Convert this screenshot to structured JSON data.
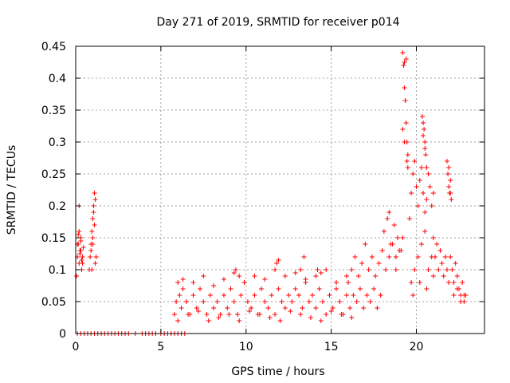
{
  "chart_data": {
    "type": "scatter",
    "title": "Day 271 of 2019, SRMTID for receiver p014",
    "xlabel": "GPS time / hours",
    "ylabel": "SRMTID / TECUs",
    "xlim": [
      0,
      24
    ],
    "ylim": [
      0,
      0.45
    ],
    "x_ticks": [
      0,
      5,
      10,
      15,
      20
    ],
    "x_tick_labels": [
      "0",
      "5",
      "10",
      "15",
      "20"
    ],
    "y_ticks": [
      0,
      0.05,
      0.1,
      0.15,
      0.2,
      0.25,
      0.3,
      0.35,
      0.4,
      0.45
    ],
    "y_tick_labels": [
      "0",
      "0.05",
      "0.1",
      "0.15",
      "0.2",
      "0.25",
      "0.3",
      "0.35",
      "0.4",
      "0.45"
    ],
    "grid": true,
    "marker": "+",
    "color": "#ff0000",
    "series": [
      {
        "name": "SRMTID",
        "x": [
          0.05,
          0.1,
          0.15,
          0.2,
          0.25,
          0.3,
          0.35,
          0.4,
          0.1,
          0.2,
          0.3,
          0.4,
          0.15,
          0.25,
          0.35,
          0.45,
          0.2,
          0.3,
          0.8,
          0.85,
          0.9,
          0.95,
          1.0,
          1.05,
          1.1,
          1.15,
          0.9,
          1.0,
          1.1,
          1.05,
          1.15,
          0.95,
          1.2,
          1.0,
          0.1,
          0.3,
          0.5,
          0.7,
          0.9,
          1.1,
          1.3,
          1.5,
          1.7,
          1.9,
          2.1,
          2.3,
          2.5,
          2.7,
          2.9,
          3.1,
          3.5,
          3.9,
          4.1,
          4.3,
          4.5,
          4.7,
          5.0,
          5.2,
          5.4,
          5.6,
          5.8,
          6.0,
          6.2,
          6.4,
          5.8,
          5.9,
          6.0,
          6.1,
          6.2,
          6.3,
          6.5,
          6.7,
          6.9,
          7.1,
          7.3,
          7.5,
          7.7,
          7.9,
          8.1,
          8.3,
          8.5,
          8.7,
          8.9,
          9.1,
          9.3,
          9.5,
          9.7,
          9.9,
          10.1,
          10.3,
          10.5,
          10.7,
          10.9,
          11.1,
          11.3,
          11.5,
          11.7,
          11.9,
          12.1,
          12.3,
          12.5,
          12.7,
          12.9,
          13.1,
          13.3,
          13.5,
          13.7,
          13.9,
          14.1,
          14.3,
          14.5,
          14.7,
          14.9,
          15.1,
          15.3,
          15.5,
          15.7,
          15.9,
          16.1,
          16.3,
          16.5,
          16.7,
          16.9,
          17.1,
          17.3,
          17.5,
          17.7,
          17.9,
          6.0,
          6.6,
          7.2,
          7.8,
          8.4,
          9.0,
          9.6,
          10.2,
          10.8,
          11.4,
          12.0,
          12.6,
          13.2,
          13.8,
          14.4,
          15.0,
          15.6,
          16.2,
          6.3,
          6.9,
          7.5,
          8.1,
          8.7,
          9.3,
          9.9,
          10.5,
          11.1,
          11.7,
          12.3,
          12.9,
          13.5,
          14.1,
          14.7,
          15.3,
          15.9,
          9.4,
          9.6,
          11.8,
          11.9,
          13.2,
          13.4,
          14.2,
          14.4,
          16.0,
          16.2,
          16.4,
          16.6,
          16.8,
          17.0,
          17.2,
          17.4,
          17.6,
          17.8,
          18.0,
          18.2,
          18.4,
          18.6,
          18.8,
          19.0,
          18.1,
          18.3,
          18.5,
          18.7,
          18.9,
          19.1,
          18.4,
          18.8,
          19.2,
          19.2,
          19.25,
          19.3,
          19.35,
          19.4,
          19.45,
          19.5,
          19.3,
          19.4,
          19.5,
          19.2,
          19.3,
          19.45,
          19.6,
          19.7,
          19.8,
          19.9,
          20.0,
          20.1,
          20.2,
          20.3,
          20.4,
          20.5,
          20.6,
          20.7,
          20.8,
          20.9,
          21.0,
          19.7,
          19.9,
          20.1,
          20.3,
          20.5,
          20.7,
          20.9,
          19.8,
          20.2,
          20.6,
          21.0,
          20.35,
          20.4,
          20.45,
          20.5,
          20.55,
          20.6,
          20.4,
          20.5,
          21.0,
          21.1,
          21.2,
          21.3,
          21.4,
          21.5,
          21.6,
          21.7,
          21.8,
          21.9,
          21.8,
          21.85,
          21.9,
          21.95,
          22.0,
          22.05,
          21.9,
          22.0,
          22.0,
          22.1,
          22.2,
          22.3,
          22.4,
          22.5,
          22.6,
          22.7,
          22.8,
          22.9,
          22.2,
          22.4,
          22.6,
          22.8
        ],
        "y": [
          0.09,
          0.12,
          0.14,
          0.11,
          0.13,
          0.15,
          0.1,
          0.12,
          0.14,
          0.16,
          0.13,
          0.11,
          0.155,
          0.125,
          0.115,
          0.135,
          0.2,
          0.145,
          0.1,
          0.12,
          0.14,
          0.16,
          0.18,
          0.2,
          0.22,
          0.21,
          0.13,
          0.15,
          0.17,
          0.19,
          0.11,
          0.1,
          0.12,
          0.14,
          0,
          0,
          0,
          0,
          0,
          0,
          0,
          0,
          0,
          0,
          0,
          0,
          0,
          0,
          0,
          0,
          0,
          0,
          0,
          0,
          0,
          0,
          0,
          0,
          0,
          0,
          0,
          0,
          0,
          0,
          0.03,
          0.05,
          0.08,
          0.06,
          0.04,
          0.07,
          0.05,
          0.03,
          0.06,
          0.04,
          0.07,
          0.05,
          0.03,
          0.06,
          0.04,
          0.05,
          0.03,
          0.06,
          0.04,
          0.07,
          0.05,
          0.03,
          0.06,
          0.08,
          0.05,
          0.04,
          0.06,
          0.03,
          0.07,
          0.05,
          0.04,
          0.06,
          0.03,
          0.07,
          0.05,
          0.04,
          0.06,
          0.05,
          0.07,
          0.06,
          0.04,
          0.08,
          0.05,
          0.06,
          0.04,
          0.07,
          0.05,
          0.03,
          0.06,
          0.04,
          0.07,
          0.05,
          0.03,
          0.06,
          0.04,
          0.06,
          0.05,
          0.07,
          0.04,
          0.06,
          0.05,
          0.07,
          0.04,
          0.06,
          0.02,
          0.03,
          0.035,
          0.02,
          0.025,
          0.03,
          0.02,
          0.035,
          0.03,
          0.025,
          0.02,
          0.035,
          0.03,
          0.025,
          0.02,
          0.035,
          0.03,
          0.025,
          0.085,
          0.08,
          0.09,
          0.075,
          0.085,
          0.095,
          0.08,
          0.09,
          0.085,
          0.1,
          0.09,
          0.095,
          0.085,
          0.09,
          0.1,
          0.08,
          0.09,
          0.1,
          0.09,
          0.11,
          0.115,
          0.1,
          0.12,
          0.1,
          0.095,
          0.08,
          0.1,
          0.12,
          0.09,
          0.11,
          0.14,
          0.1,
          0.12,
          0.09,
          0.11,
          0.13,
          0.1,
          0.12,
          0.14,
          0.1,
          0.13,
          0.16,
          0.18,
          0.14,
          0.17,
          0.15,
          0.13,
          0.19,
          0.12,
          0.15,
          0.44,
          0.42,
          0.385,
          0.365,
          0.33,
          0.3,
          0.28,
          0.425,
          0.43,
          0.26,
          0.32,
          0.3,
          0.27,
          0.18,
          0.22,
          0.25,
          0.27,
          0.23,
          0.2,
          0.24,
          0.26,
          0.22,
          0.19,
          0.21,
          0.25,
          0.23,
          0.2,
          0.22,
          0.08,
          0.1,
          0.12,
          0.14,
          0.16,
          0.1,
          0.12,
          0.06,
          0.08,
          0.07,
          0.09,
          0.34,
          0.33,
          0.32,
          0.3,
          0.28,
          0.26,
          0.31,
          0.29,
          0.15,
          0.12,
          0.14,
          0.1,
          0.13,
          0.11,
          0.09,
          0.12,
          0.1,
          0.08,
          0.27,
          0.25,
          0.23,
          0.22,
          0.24,
          0.21,
          0.26,
          0.22,
          0.12,
          0.1,
          0.08,
          0.11,
          0.09,
          0.07,
          0.06,
          0.08,
          0.05,
          0.06,
          0.06,
          0.07,
          0.05,
          0.06
        ]
      }
    ]
  }
}
